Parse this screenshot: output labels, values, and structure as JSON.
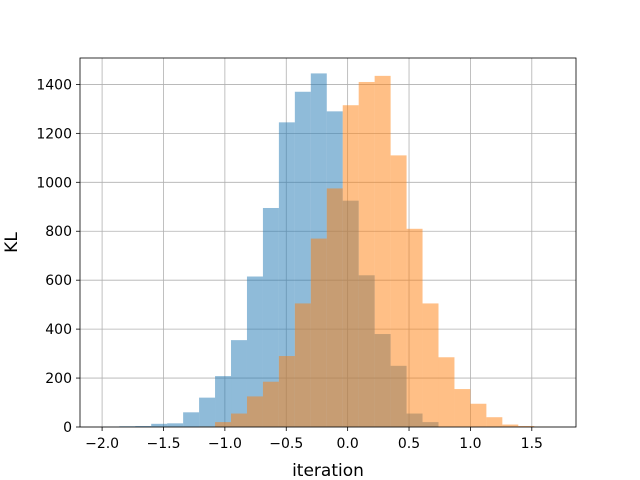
{
  "chart_data": {
    "type": "bar",
    "histogram": true,
    "title": "",
    "xlabel": "iteration",
    "ylabel": "KL",
    "xlim": [
      -2.18,
      1.86
    ],
    "ylim": [
      0,
      1508
    ],
    "grid": true,
    "x_ticks": [
      -2.0,
      -1.5,
      -1.0,
      -0.5,
      0.0,
      0.5,
      1.0,
      1.5
    ],
    "x_tick_labels": [
      "−2.0",
      "−1.5",
      "−1.0",
      "−0.5",
      "0.0",
      "0.5",
      "1.0",
      "1.5"
    ],
    "y_ticks": [
      0,
      200,
      400,
      600,
      800,
      1000,
      1200,
      1400
    ],
    "y_tick_labels": [
      "0",
      "200",
      "400",
      "600",
      "800",
      "1000",
      "1200",
      "1400"
    ],
    "series": [
      {
        "color": "#1f77b4",
        "alpha": 0.5,
        "bin_edges": [
          -1.99,
          -1.86,
          -1.73,
          -1.6,
          -1.47,
          -1.34,
          -1.21,
          -1.08,
          -0.95,
          -0.82,
          -0.69,
          -0.56,
          -0.43,
          -0.3,
          -0.17,
          -0.04,
          0.09,
          0.22,
          0.35,
          0.48,
          0.61,
          0.74
        ],
        "values": [
          1,
          3,
          4,
          13,
          15,
          60,
          120,
          208,
          355,
          615,
          895,
          1245,
          1370,
          1445,
          1290,
          925,
          620,
          380,
          250,
          55,
          20
        ]
      },
      {
        "color": "#ff7f0e",
        "alpha": 0.5,
        "bin_edges": [
          -1.21,
          -1.08,
          -0.95,
          -0.82,
          -0.69,
          -0.56,
          -0.43,
          -0.3,
          -0.17,
          -0.04,
          0.09,
          0.22,
          0.35,
          0.48,
          0.61,
          0.74,
          0.87,
          1.0,
          1.13,
          1.26,
          1.39,
          1.52,
          1.65
        ],
        "values": [
          2,
          20,
          55,
          125,
          185,
          290,
          505,
          770,
          975,
          1315,
          1410,
          1435,
          1110,
          810,
          505,
          285,
          155,
          95,
          40,
          10,
          4,
          1
        ]
      }
    ]
  }
}
